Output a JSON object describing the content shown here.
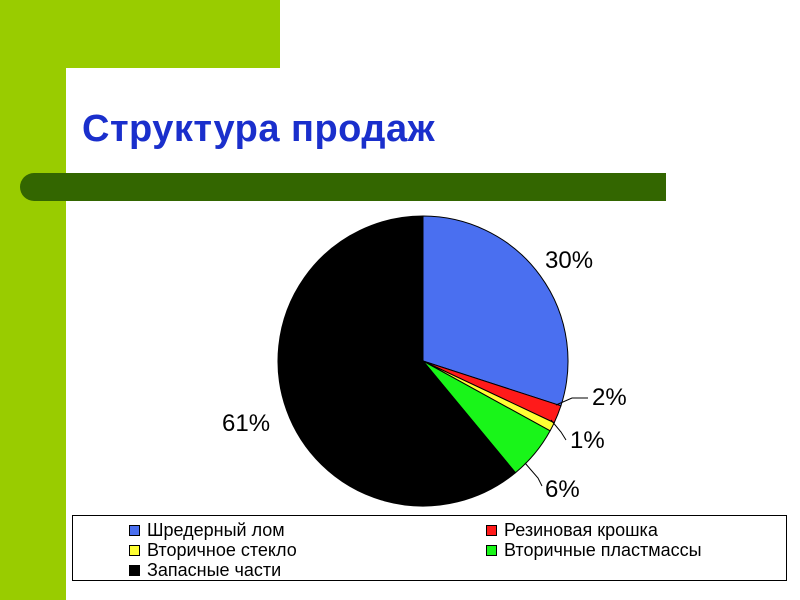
{
  "slide": {
    "title": "Структура продаж"
  },
  "chart_data": {
    "type": "pie",
    "categories": [
      "Шредерный лом",
      "Резиновая крошка",
      "Вторичное стекло",
      "Вторичные пластмассы",
      "Запасные части"
    ],
    "values": [
      30,
      2,
      1,
      6,
      61
    ],
    "data_labels": [
      "30%",
      "2%",
      "1%",
      "6%",
      "61%"
    ],
    "colors": [
      "#4a6ff0",
      "#ff1a1a",
      "#ffff33",
      "#19f519",
      "#000000"
    ],
    "start_angle_deg": 0,
    "direction": "clockwise",
    "legend": "bottom"
  }
}
